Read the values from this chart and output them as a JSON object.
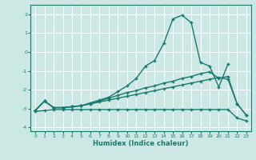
{
  "xlabel": "Humidex (Indice chaleur)",
  "bg_color": "#cce8e4",
  "line_color": "#1a7a6e",
  "grid_color": "#ffffff",
  "xlim": [
    -0.5,
    23.5
  ],
  "ylim": [
    -4.2,
    2.5
  ],
  "yticks": [
    -4,
    -3,
    -2,
    -1,
    0,
    1,
    2
  ],
  "xticks": [
    0,
    1,
    2,
    3,
    4,
    5,
    6,
    7,
    8,
    9,
    10,
    11,
    12,
    13,
    14,
    15,
    16,
    17,
    18,
    19,
    20,
    21,
    22,
    23
  ],
  "line1_x": [
    0,
    1,
    2,
    3,
    4,
    5,
    6,
    7,
    8,
    9,
    10,
    11,
    12,
    13,
    14,
    15,
    16,
    17,
    18,
    19,
    20,
    21
  ],
  "line1_y": [
    -3.1,
    -2.6,
    -2.95,
    -2.95,
    -2.9,
    -2.85,
    -2.7,
    -2.55,
    -2.4,
    -2.1,
    -1.8,
    -1.4,
    -0.75,
    -0.45,
    0.45,
    1.75,
    1.95,
    1.55,
    -0.55,
    -0.75,
    -1.85,
    -0.65
  ],
  "line2_x": [
    0,
    1,
    2,
    3,
    4,
    5,
    6,
    7,
    8,
    9,
    10,
    11,
    12,
    13,
    14,
    15,
    16,
    17,
    18,
    19,
    20,
    21,
    22,
    23
  ],
  "line2_y": [
    -3.1,
    -2.6,
    -2.95,
    -2.95,
    -2.9,
    -2.85,
    -2.75,
    -2.6,
    -2.45,
    -2.3,
    -2.15,
    -2.05,
    -1.9,
    -1.8,
    -1.65,
    -1.55,
    -1.4,
    -1.3,
    -1.15,
    -1.05,
    -1.4,
    -1.3,
    -2.75,
    -3.35
  ],
  "line3_x": [
    0,
    1,
    2,
    3,
    4,
    5,
    6,
    7,
    8,
    9,
    10,
    11,
    12,
    13,
    14,
    15,
    16,
    17,
    18,
    19,
    20,
    21,
    22,
    23
  ],
  "line3_y": [
    -3.1,
    -2.6,
    -2.95,
    -2.95,
    -2.9,
    -2.85,
    -2.75,
    -2.65,
    -2.55,
    -2.45,
    -2.35,
    -2.25,
    -2.15,
    -2.05,
    -1.95,
    -1.85,
    -1.75,
    -1.65,
    -1.55,
    -1.45,
    -1.35,
    -1.45,
    -2.75,
    -3.35
  ],
  "line4_x": [
    0,
    1,
    2,
    3,
    4,
    5,
    6,
    7,
    8,
    9,
    10,
    11,
    12,
    13,
    14,
    15,
    16,
    17,
    18,
    19,
    20,
    21,
    22,
    23
  ],
  "line4_y": [
    -3.15,
    -3.1,
    -3.05,
    -3.05,
    -3.05,
    -3.05,
    -3.05,
    -3.05,
    -3.05,
    -3.05,
    -3.05,
    -3.05,
    -3.05,
    -3.05,
    -3.05,
    -3.05,
    -3.05,
    -3.05,
    -3.05,
    -3.05,
    -3.05,
    -3.05,
    -3.5,
    -3.65
  ]
}
